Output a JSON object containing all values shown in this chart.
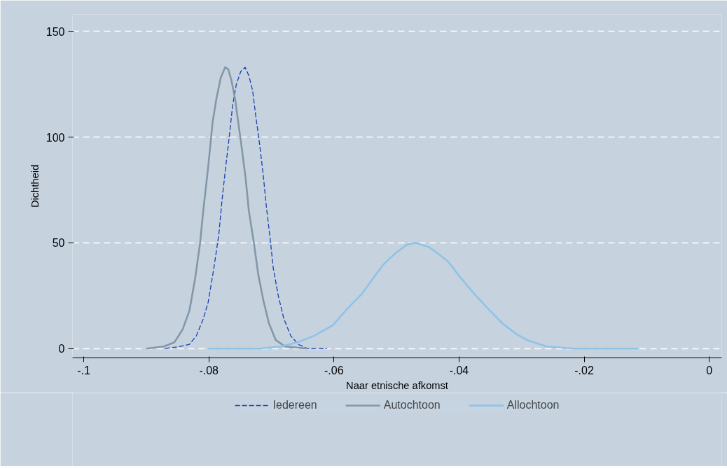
{
  "chart_data": {
    "type": "line",
    "xlabel": "Naar etnische afkomst",
    "ylabel": "Dichtheid",
    "xlim": [
      -0.1018,
      0.002
    ],
    "ylim": [
      -4.4,
      158
    ],
    "xticks": [
      {
        "value": -0.1,
        "label": "-.1"
      },
      {
        "value": -0.08,
        "label": "-.08"
      },
      {
        "value": -0.06,
        "label": "-.06"
      },
      {
        "value": -0.04,
        "label": "-.04"
      },
      {
        "value": -0.02,
        "label": "-.02"
      },
      0
    ],
    "yticks": [
      0,
      50,
      100,
      150
    ],
    "grid": "y",
    "legend": "bottom",
    "marker": "none",
    "series": [
      {
        "name": "Iedereen",
        "color": "#1a3fb0",
        "line_style": "dashed",
        "x": [
          -0.087,
          -0.0846,
          -0.0831,
          -0.082,
          -0.0809,
          -0.0801,
          -0.0792,
          -0.0784,
          -0.0779,
          -0.0773,
          -0.0767,
          -0.0762,
          -0.0756,
          -0.0749,
          -0.0742,
          -0.0736,
          -0.073,
          -0.0725,
          -0.0719,
          -0.0713,
          -0.0708,
          -0.0702,
          -0.0697,
          -0.0689,
          -0.068,
          -0.0669,
          -0.0657,
          -0.0642,
          -0.0611
        ],
        "values": [
          0,
          1,
          2,
          6,
          14,
          22,
          38,
          54,
          70,
          86,
          101,
          115,
          125,
          131,
          133,
          129,
          122,
          110,
          97,
          82,
          67,
          52,
          38,
          25,
          14,
          6,
          2,
          0,
          0
        ]
      },
      {
        "name": "Autochtoon",
        "color": "#8497a8",
        "line_style": "solid",
        "x": [
          -0.09,
          -0.0872,
          -0.0855,
          -0.0842,
          -0.0831,
          -0.0822,
          -0.0814,
          -0.0809,
          -0.0801,
          -0.0794,
          -0.0788,
          -0.0781,
          -0.0774,
          -0.0769,
          -0.0764,
          -0.0758,
          -0.0753,
          -0.0747,
          -0.0741,
          -0.0736,
          -0.0728,
          -0.0721,
          -0.0713,
          -0.0704,
          -0.0693,
          -0.0678,
          -0.0642
        ],
        "values": [
          0,
          1,
          3,
          9,
          18,
          33,
          50,
          65,
          86,
          107,
          118,
          128,
          133,
          132,
          127,
          118,
          107,
          94,
          80,
          65,
          50,
          35,
          23,
          12,
          4,
          1,
          0
        ]
      },
      {
        "name": "Allochtoon",
        "color": "#8ec3e8",
        "line_style": "solid",
        "x": [
          -0.0801,
          -0.072,
          -0.0685,
          -0.0658,
          -0.0632,
          -0.0602,
          -0.0578,
          -0.0555,
          -0.0538,
          -0.052,
          -0.0502,
          -0.0484,
          -0.047,
          -0.0448,
          -0.0434,
          -0.0417,
          -0.0399,
          -0.0376,
          -0.0354,
          -0.0331,
          -0.0309,
          -0.0291,
          -0.026,
          -0.0215,
          -0.0114
        ],
        "values": [
          0,
          0,
          1,
          3,
          6,
          11,
          19,
          26,
          33,
          40,
          45,
          49,
          50,
          48,
          45,
          41,
          34,
          26,
          19,
          12,
          7,
          4,
          1,
          0,
          0
        ]
      }
    ]
  }
}
